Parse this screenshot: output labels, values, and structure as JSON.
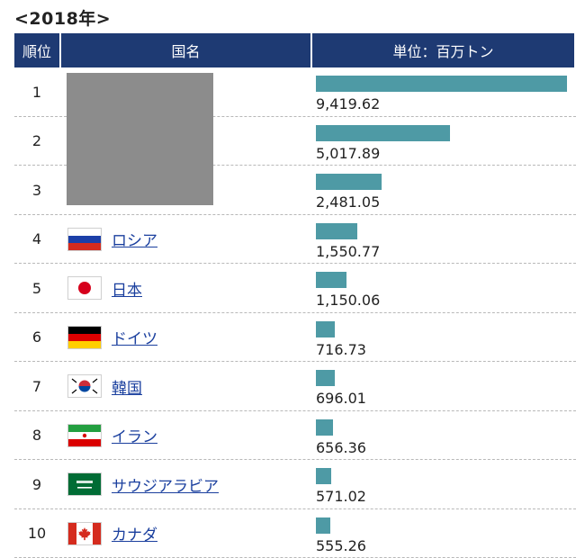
{
  "caption": "<2018年>",
  "header": {
    "rank": "順位",
    "country": "国名",
    "unit": "単位：百万トン"
  },
  "chart_data": {
    "type": "bar",
    "title": "<2018年>",
    "unit_label": "単位：百万トン",
    "xlim": [
      0,
      9419.62
    ],
    "categories": [
      "",
      "",
      "",
      "ロシア",
      "日本",
      "ドイツ",
      "韓国",
      "イラン",
      "サウジアラビア",
      "カナダ"
    ],
    "ranks": [
      "1",
      "2",
      "3",
      "4",
      "5",
      "6",
      "7",
      "8",
      "9",
      "10"
    ],
    "values": [
      9419.62,
      5017.89,
      2481.05,
      1550.77,
      1150.06,
      716.73,
      696.01,
      656.36,
      571.02,
      555.26
    ],
    "value_labels": [
      "9,419.62",
      "5,017.89",
      "2,481.05",
      "1,550.77",
      "1,150.06",
      "716.73",
      "696.01",
      "656.36",
      "571.02",
      "555.26"
    ],
    "flags": [
      "",
      "",
      "",
      "russia-flag-icon",
      "japan-flag-icon",
      "germany-flag-icon",
      "korea-flag-icon",
      "iran-flag-icon",
      "saudi-arabia-flag-icon",
      "canada-flag-icon"
    ],
    "bar_color": "#4e9aa5",
    "header_color": "#1e3a73",
    "link_color": "#1a3f9e"
  }
}
